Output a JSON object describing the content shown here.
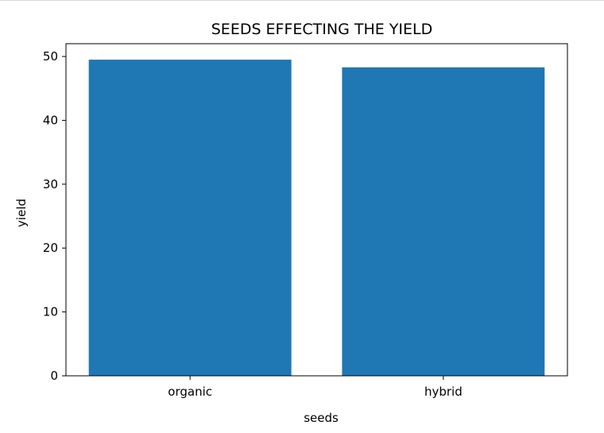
{
  "chart_data": {
    "type": "bar",
    "title": "SEEDS EFFECTING THE YIELD",
    "xlabel": "seeds",
    "ylabel": "yield",
    "categories": [
      "organic",
      "hybrid"
    ],
    "values": [
      49.5,
      48.3
    ],
    "ylim": [
      0,
      52.0
    ],
    "yticks": [
      0,
      10,
      20,
      30,
      40,
      50
    ],
    "grid": false,
    "bar_color": "#1f77b4"
  }
}
